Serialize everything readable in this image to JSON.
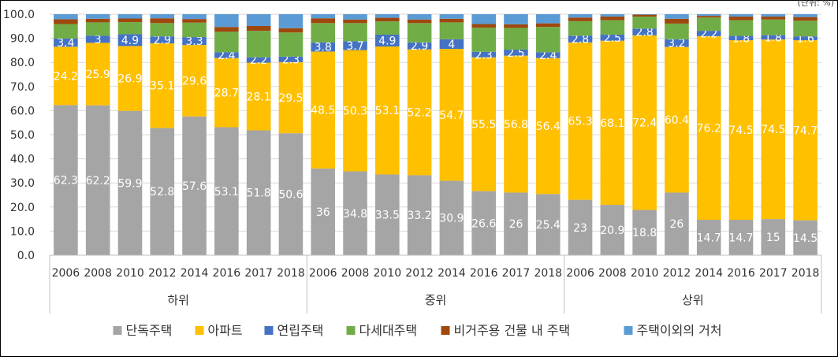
{
  "unit_note": "(단위: %)",
  "chart_data": {
    "type": "bar",
    "stacked": true,
    "ylim": [
      0,
      100
    ],
    "yticks": [
      "0.0",
      "10.0",
      "20.0",
      "30.0",
      "40.0",
      "50.0",
      "60.0",
      "70.0",
      "80.0",
      "90.0",
      "100.0"
    ],
    "grid": true,
    "legend_position": "bottom",
    "groups": [
      {
        "label": "하위",
        "years": [
          "2006",
          "2008",
          "2010",
          "2012",
          "2014",
          "2016",
          "2017",
          "2018"
        ]
      },
      {
        "label": "중위",
        "years": [
          "2006",
          "2008",
          "2010",
          "2012",
          "2014",
          "2016",
          "2017",
          "2018"
        ]
      },
      {
        "label": "상위",
        "years": [
          "2006",
          "2008",
          "2010",
          "2012",
          "2014",
          "2016",
          "2017",
          "2018"
        ]
      }
    ],
    "series": [
      {
        "name": "단독주택",
        "color": "#a5a5a5",
        "labeled": true,
        "values": [
          62.3,
          62.2,
          59.9,
          52.8,
          57.6,
          53.1,
          51.8,
          50.6,
          36.0,
          34.8,
          33.5,
          33.2,
          30.9,
          26.6,
          26.0,
          25.4,
          23.0,
          20.9,
          18.8,
          26.0,
          14.7,
          14.7,
          15.0,
          14.5
        ]
      },
      {
        "name": "아파트",
        "color": "#ffc000",
        "labeled": true,
        "values": [
          24.2,
          25.9,
          26.9,
          35.1,
          29.6,
          28.7,
          28.1,
          29.5,
          48.5,
          50.3,
          53.1,
          52.2,
          54.7,
          55.5,
          56.8,
          56.4,
          65.3,
          68.1,
          72.4,
          60.4,
          76.2,
          74.5,
          74.5,
          74.7
        ]
      },
      {
        "name": "연립주택",
        "color": "#4472c4",
        "labeled": true,
        "values": [
          3.4,
          3.0,
          4.9,
          2.9,
          3.3,
          2.4,
          2.2,
          2.3,
          3.8,
          3.7,
          4.9,
          2.9,
          4.0,
          2.3,
          2.5,
          2.4,
          2.8,
          2.5,
          2.8,
          3.2,
          2.2,
          1.8,
          1.8,
          1.6
        ]
      },
      {
        "name": "다세대주택",
        "color": "#70ad47",
        "labeled": false,
        "values": [
          6.0,
          5.5,
          5.0,
          5.5,
          6.0,
          8.5,
          11.0,
          10.0,
          8.0,
          7.5,
          5.5,
          8.0,
          7.0,
          10.0,
          9.0,
          10.5,
          6.0,
          6.0,
          5.0,
          6.5,
          5.5,
          6.5,
          6.5,
          6.5
        ]
      },
      {
        "name": "비거주용 건물 내 주택",
        "color": "#9e480e",
        "labeled": false,
        "values": [
          2.0,
          1.5,
          1.5,
          2.0,
          1.5,
          2.0,
          2.0,
          1.8,
          2.0,
          1.5,
          1.5,
          1.5,
          1.5,
          1.5,
          1.5,
          1.5,
          1.5,
          1.5,
          0.8,
          2.0,
          0.7,
          1.5,
          1.2,
          1.5
        ]
      },
      {
        "name": "주택이외의 거처",
        "color": "#5b9bd5",
        "labeled": false,
        "values": [
          2.1,
          1.9,
          1.8,
          1.7,
          2.0,
          5.3,
          4.9,
          5.8,
          1.7,
          2.2,
          1.5,
          2.2,
          1.9,
          4.1,
          4.2,
          3.8,
          1.4,
          1.0,
          0.2,
          1.9,
          0.7,
          1.0,
          1.0,
          1.2
        ]
      }
    ]
  }
}
